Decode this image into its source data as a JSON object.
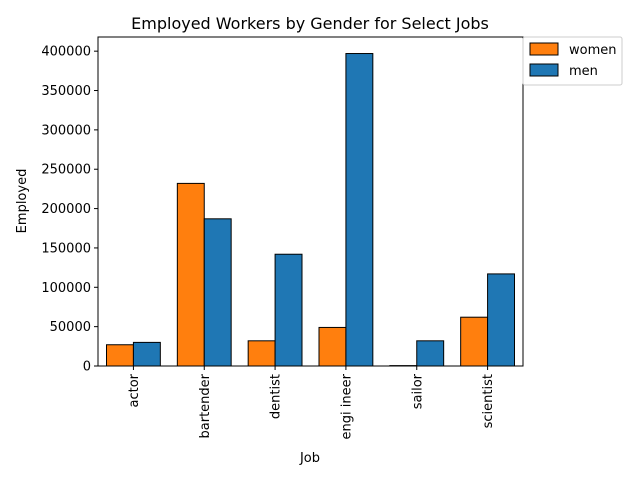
{
  "chart_data": {
    "type": "bar",
    "title": "Employed Workers by Gender for Select Jobs",
    "xlabel": "Job",
    "ylabel": "Employed",
    "categories": [
      "actor",
      "bartender",
      "dentist",
      "engi ineer",
      "sailor",
      "scientist"
    ],
    "series": [
      {
        "name": "women",
        "color": "#ff7f0e",
        "values": [
          27000,
          232000,
          32000,
          49000,
          500,
          62000
        ]
      },
      {
        "name": "men",
        "color": "#1f77b4",
        "values": [
          30000,
          187000,
          142000,
          397000,
          32000,
          117000
        ]
      }
    ],
    "ylim": [
      0,
      418000
    ],
    "yticks": [
      0,
      50000,
      100000,
      150000,
      200000,
      250000,
      300000,
      350000,
      400000
    ],
    "grid": false,
    "legend_position": "top-right-outside"
  }
}
